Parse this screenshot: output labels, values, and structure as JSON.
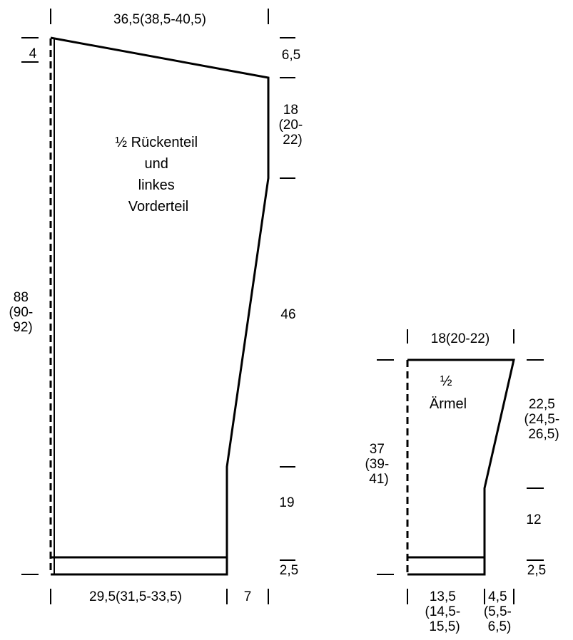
{
  "back_piece": {
    "label": [
      "½ Rückenteil",
      "und",
      "linkes",
      "Vorderteil"
    ],
    "top_width": "36,5(38,5-40,5)",
    "left_top_drop": "4",
    "right_shoulder_drop": "6,5",
    "armhole": [
      "18",
      "(20-",
      "22)"
    ],
    "side_length": "46",
    "lower_side": "19",
    "hem": "2,5",
    "total_length": [
      "88",
      "(90-",
      "92)"
    ],
    "bottom_width": "29,5(31,5-33,5)",
    "bottom_extra": "7"
  },
  "sleeve": {
    "label": [
      "½",
      "Ärmel"
    ],
    "top_width": "18(20-22)",
    "length": [
      "37",
      "(39-",
      "41)"
    ],
    "taper_length": [
      "22,5",
      "(24,5-",
      "26,5)"
    ],
    "lower_length": "12",
    "cuff": "2,5",
    "bottom_width": [
      "13,5",
      "(14,5-",
      "15,5)"
    ],
    "bottom_extra": [
      "4,5",
      "(5,5-",
      "6,5)"
    ]
  },
  "colors": {
    "line": "#000000",
    "background": "#ffffff"
  }
}
